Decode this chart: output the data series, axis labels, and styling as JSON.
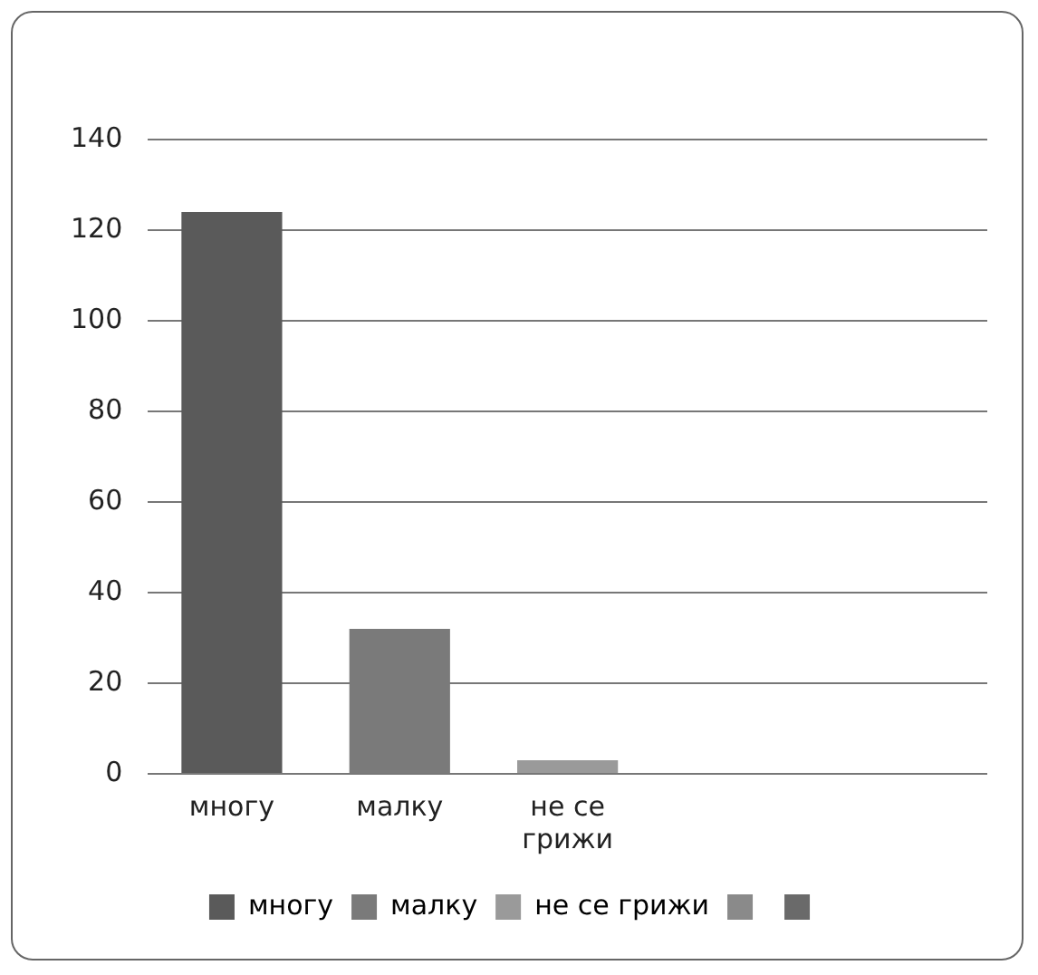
{
  "chart_data": {
    "type": "bar",
    "categories": [
      "многу",
      "малку",
      "не се грижи",
      null,
      null
    ],
    "series": [
      {
        "name": "многу",
        "color": "#5a5a5a",
        "values": [
          124,
          null,
          null,
          null,
          null
        ]
      },
      {
        "name": "малку",
        "color": "#7a7a7a",
        "values": [
          null,
          32,
          null,
          null,
          null
        ]
      },
      {
        "name": "не се грижи",
        "color": "#9a9a9a",
        "values": [
          null,
          null,
          3,
          null,
          null
        ]
      },
      {
        "color": "#8a8a8a",
        "values": [
          null,
          null,
          null,
          null,
          null
        ]
      },
      {
        "color": "#6a6a6a",
        "values": [
          null,
          null,
          null,
          null,
          null
        ]
      }
    ],
    "ylim": [
      0,
      140
    ],
    "yticks": [
      0,
      20,
      40,
      60,
      80,
      100,
      120,
      140
    ],
    "grid": "y",
    "legend": "bottom"
  }
}
